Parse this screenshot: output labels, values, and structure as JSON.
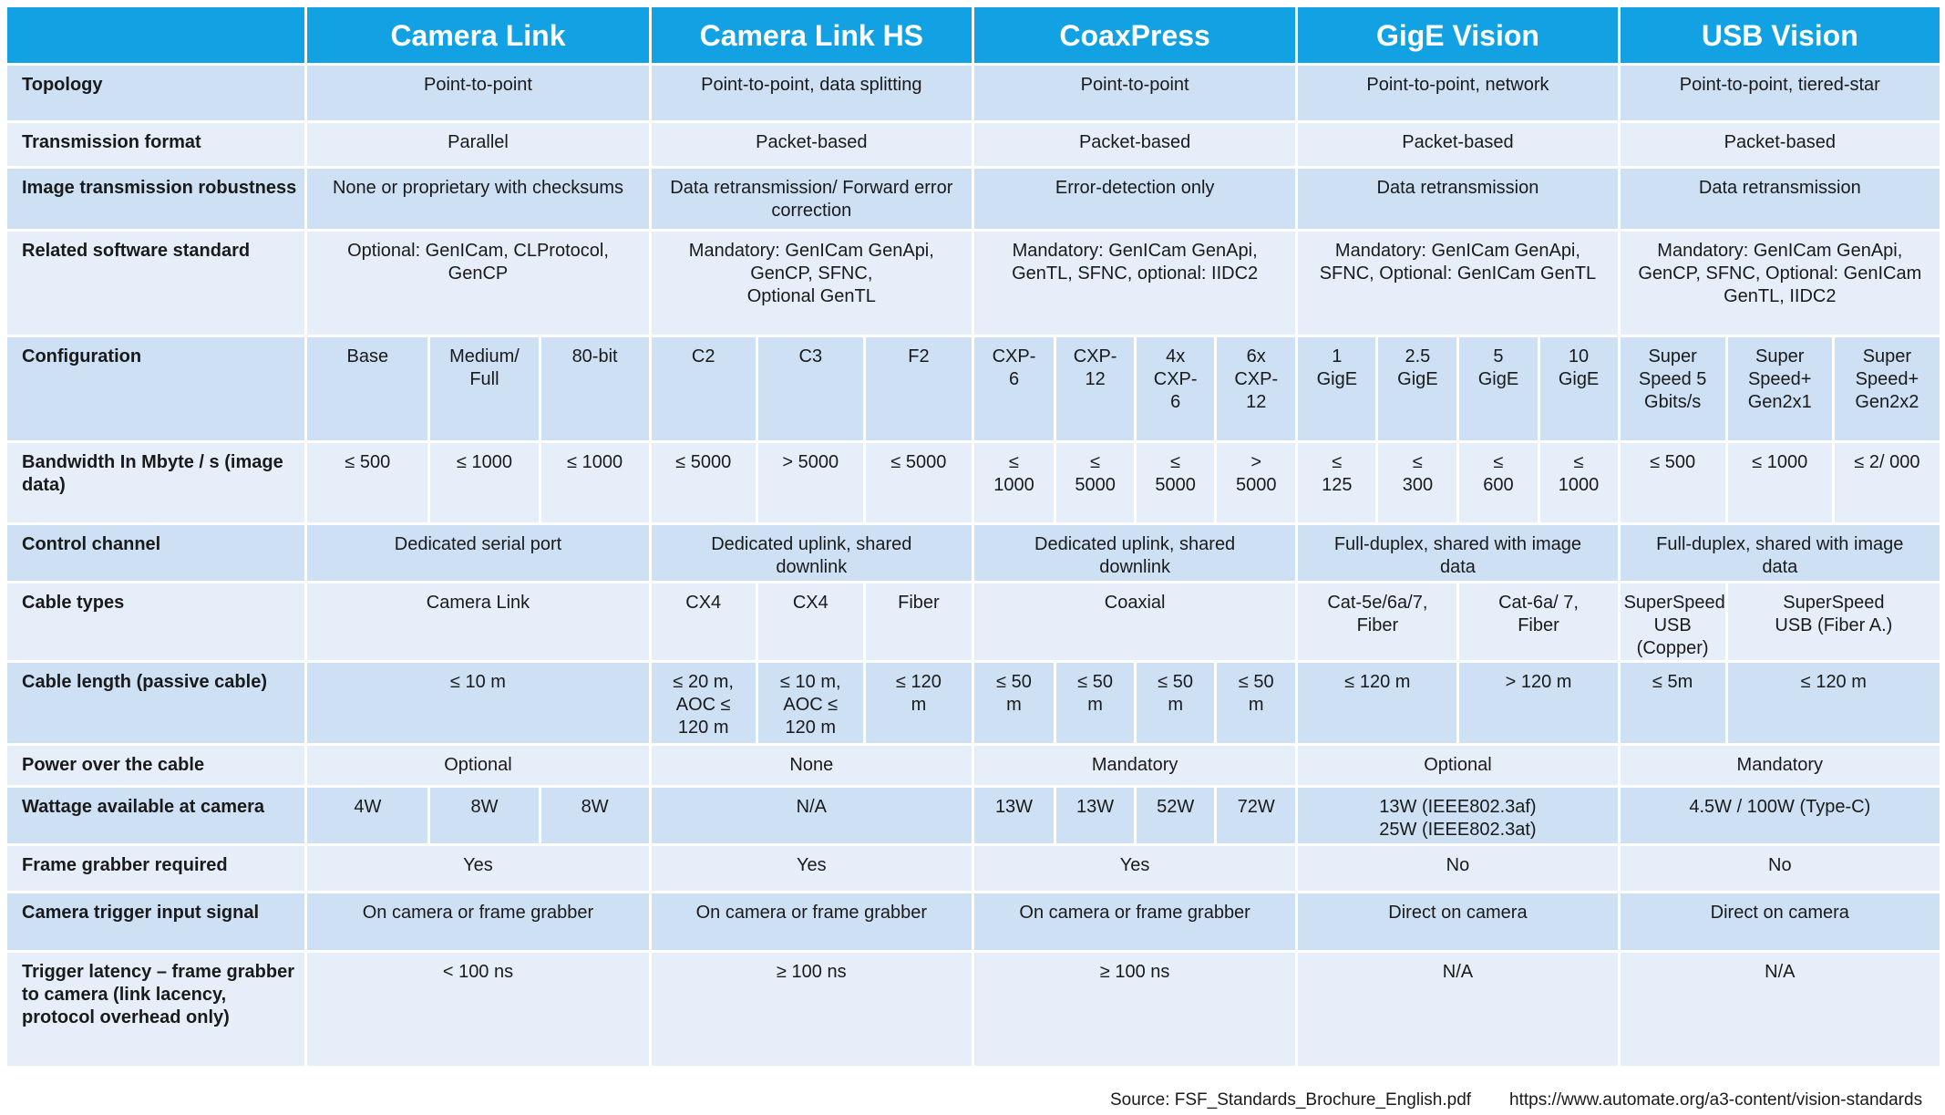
{
  "header": {
    "corner": "",
    "standards": [
      {
        "label": "Camera Link",
        "span": 3
      },
      {
        "label": "Camera Link HS",
        "span": 3
      },
      {
        "label": "CoaxPress",
        "span": 4
      },
      {
        "label": "GigE Vision",
        "span": 4
      },
      {
        "label": "USB Vision",
        "span": 3
      }
    ]
  },
  "colors": {
    "header": "#12a2e4",
    "row_dark": "#cde0f4",
    "row_light": "#e6eef9"
  },
  "rows": [
    {
      "label": "Topology",
      "cells": [
        {
          "text": "Point-to-point",
          "span": 3
        },
        {
          "text": "Point-to-point, data splitting",
          "span": 3
        },
        {
          "text": "Point-to-point",
          "span": 4
        },
        {
          "text": "Point-to-point, network",
          "span": 4
        },
        {
          "text": "Point-to-point, tiered-star",
          "span": 3
        }
      ]
    },
    {
      "label": "Transmission format",
      "cells": [
        {
          "text": "Parallel",
          "span": 3
        },
        {
          "text": "Packet-based",
          "span": 3
        },
        {
          "text": "Packet-based",
          "span": 4
        },
        {
          "text": "Packet-based",
          "span": 4
        },
        {
          "text": "Packet-based",
          "span": 3
        }
      ]
    },
    {
      "label": "Image transmission robustness",
      "cells": [
        {
          "text": "None or proprietary with checksums",
          "span": 3
        },
        {
          "text": "Data retransmission/ Forward error correction",
          "span": 3
        },
        {
          "text": "Error-detection only",
          "span": 4
        },
        {
          "text": "Data retransmission",
          "span": 4
        },
        {
          "text": "Data retransmission",
          "span": 3
        }
      ]
    },
    {
      "label": "Related software standard",
      "cells": [
        {
          "text": "Optional: GenICam, CLProtocol,\nGenCP",
          "span": 3
        },
        {
          "text": "Mandatory: GenICam GenApi,\nGenCP, SFNC,\nOptional GenTL",
          "span": 3
        },
        {
          "text": "Mandatory: GenICam GenApi,\nGenTL, SFNC, optional: IIDC2",
          "span": 4
        },
        {
          "text": "Mandatory: GenICam GenApi,\nSFNC, Optional: GenICam GenTL",
          "span": 4
        },
        {
          "text": "Mandatory: GenICam GenApi,\nGenCP, SFNC, Optional: GenICam\nGenTL, IIDC2",
          "span": 3
        }
      ]
    },
    {
      "label": "Configuration",
      "cells": [
        {
          "text": "Base",
          "span": 1
        },
        {
          "text": "Medium/\nFull",
          "span": 1
        },
        {
          "text": "80-bit",
          "span": 1
        },
        {
          "text": "C2",
          "span": 1
        },
        {
          "text": "C3",
          "span": 1
        },
        {
          "text": "F2",
          "span": 1
        },
        {
          "text": "CXP-\n6",
          "span": 1
        },
        {
          "text": "CXP-\n12",
          "span": 1
        },
        {
          "text": "4x\nCXP-\n6",
          "span": 1
        },
        {
          "text": "6x\nCXP-\n12",
          "span": 1
        },
        {
          "text": "1\nGigE",
          "span": 1
        },
        {
          "text": "2.5\nGigE",
          "span": 1
        },
        {
          "text": "5\nGigE",
          "span": 1
        },
        {
          "text": "10\nGigE",
          "span": 1
        },
        {
          "text": "Super\nSpeed 5\nGbits/s",
          "span": 1
        },
        {
          "text": "Super\nSpeed+\nGen2x1",
          "span": 1
        },
        {
          "text": "Super\nSpeed+\nGen2x2",
          "span": 1
        }
      ]
    },
    {
      "label": "Bandwidth In Mbyte / s (image data)",
      "cells": [
        {
          "text": "≤ 500",
          "span": 1
        },
        {
          "text": "≤ 1000",
          "span": 1
        },
        {
          "text": "≤ 1000",
          "span": 1
        },
        {
          "text": "≤ 5000",
          "span": 1
        },
        {
          "text": "> 5000",
          "span": 1
        },
        {
          "text": "≤ 5000",
          "span": 1
        },
        {
          "text": "≤\n1000",
          "span": 1
        },
        {
          "text": "≤\n5000",
          "span": 1
        },
        {
          "text": "≤\n5000",
          "span": 1
        },
        {
          "text": ">\n5000",
          "span": 1
        },
        {
          "text": "≤\n125",
          "span": 1
        },
        {
          "text": "≤\n300",
          "span": 1
        },
        {
          "text": "≤\n600",
          "span": 1
        },
        {
          "text": "≤\n1000",
          "span": 1
        },
        {
          "text": "≤ 500",
          "span": 1
        },
        {
          "text": "≤ 1000",
          "span": 1
        },
        {
          "text": "≤ 2/ 000",
          "span": 1
        }
      ]
    },
    {
      "label": "Control channel",
      "cells": [
        {
          "text": "Dedicated serial port",
          "span": 3
        },
        {
          "text": "Dedicated uplink, shared\ndownlink",
          "span": 3
        },
        {
          "text": "Dedicated uplink, shared\ndownlink",
          "span": 4
        },
        {
          "text": "Full-duplex, shared with image\ndata",
          "span": 4
        },
        {
          "text": "Full-duplex, shared with image\ndata",
          "span": 3
        }
      ]
    },
    {
      "label": "Cable types",
      "cells": [
        {
          "text": "Camera Link",
          "span": 3
        },
        {
          "text": "CX4",
          "span": 1
        },
        {
          "text": "CX4",
          "span": 1
        },
        {
          "text": "Fiber",
          "span": 1
        },
        {
          "text": "Coaxial",
          "span": 4
        },
        {
          "text": "Cat-5e/6a/7,\nFiber",
          "span": 2
        },
        {
          "text": "Cat-6a/ 7,\nFiber",
          "span": 2
        },
        {
          "text": "SuperSpeed\nUSB (Copper)",
          "span": 1,
          "wide": true
        },
        {
          "text": "SuperSpeed\nUSB (Fiber A.)",
          "span": 2
        }
      ]
    },
    {
      "label": "Cable length (passive cable)",
      "cells": [
        {
          "text": "≤ 10 m",
          "span": 3
        },
        {
          "text": "≤ 20 m,\nAOC ≤\n120 m",
          "span": 1
        },
        {
          "text": "≤ 10 m,\nAOC ≤\n120 m",
          "span": 1
        },
        {
          "text": "≤  120\nm",
          "span": 1
        },
        {
          "text": "≤ 50\nm",
          "span": 1
        },
        {
          "text": "≤ 50\nm",
          "span": 1
        },
        {
          "text": "≤ 50\nm",
          "span": 1
        },
        {
          "text": "≤ 50\nm",
          "span": 1
        },
        {
          "text": "≤ 120 m",
          "span": 2
        },
        {
          "text": "> 120 m",
          "span": 2
        },
        {
          "text": "≤ 5m",
          "span": 1,
          "wide": true
        },
        {
          "text": "≤ 120 m",
          "span": 2
        }
      ]
    },
    {
      "label": "Power over the cable",
      "cells": [
        {
          "text": "Optional",
          "span": 3
        },
        {
          "text": "None",
          "span": 3
        },
        {
          "text": "Mandatory",
          "span": 4
        },
        {
          "text": "Optional",
          "span": 4
        },
        {
          "text": "Mandatory",
          "span": 3
        }
      ]
    },
    {
      "label": "Wattage available at camera",
      "cells": [
        {
          "text": "4W",
          "span": 1
        },
        {
          "text": "8W",
          "span": 1
        },
        {
          "text": "8W",
          "span": 1
        },
        {
          "text": "N/A",
          "span": 3
        },
        {
          "text": "13W",
          "span": 1
        },
        {
          "text": "13W",
          "span": 1
        },
        {
          "text": "52W",
          "span": 1
        },
        {
          "text": "72W",
          "span": 1
        },
        {
          "text": "13W (IEEE802.3af)\n25W (IEEE802.3at)",
          "span": 4
        },
        {
          "text": "4.5W / 100W (Type-C)",
          "span": 3
        }
      ]
    },
    {
      "label": "Frame grabber required",
      "cells": [
        {
          "text": "Yes",
          "span": 3
        },
        {
          "text": "Yes",
          "span": 3
        },
        {
          "text": "Yes",
          "span": 4
        },
        {
          "text": "No",
          "span": 4
        },
        {
          "text": "No",
          "span": 3
        }
      ]
    },
    {
      "label": "Camera trigger input signal",
      "cells": [
        {
          "text": "On camera or frame grabber",
          "span": 3
        },
        {
          "text": "On camera or frame grabber",
          "span": 3
        },
        {
          "text": "On camera or frame grabber",
          "span": 4
        },
        {
          "text": "Direct on camera",
          "span": 4
        },
        {
          "text": "Direct on camera",
          "span": 3
        }
      ]
    },
    {
      "label": "Trigger latency – frame grabber to camera (link lacency, protocol overhead only)",
      "cells": [
        {
          "text": "< 100 ns",
          "span": 3
        },
        {
          "text": "≥ 100 ns",
          "span": 3
        },
        {
          "text": "≥ 100 ns",
          "span": 4
        },
        {
          "text": "N/A",
          "span": 4
        },
        {
          "text": "N/A",
          "span": 3
        }
      ]
    }
  ],
  "footer": {
    "source": "Source: FSF_Standards_Brochure_English.pdf",
    "url": "https://www.automate.org/a3-content/vision-standards"
  }
}
